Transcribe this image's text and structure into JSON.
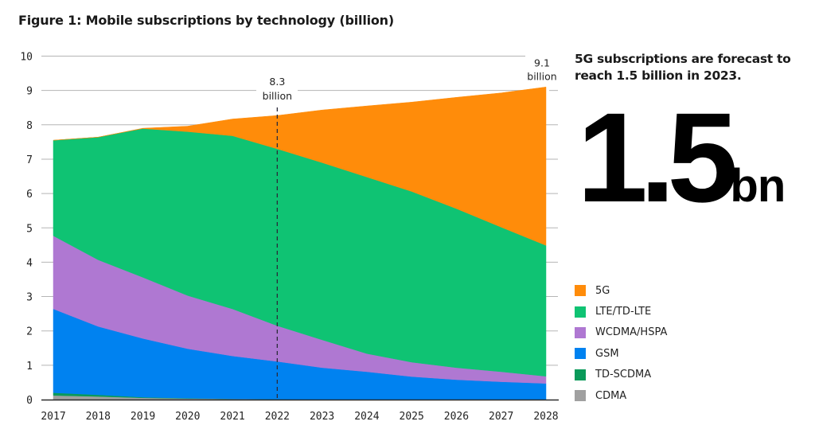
{
  "chart_data": {
    "type": "area",
    "stacked": true,
    "title": "Figure 1: Mobile subscriptions by technology (billion)",
    "xlabel": "",
    "ylabel": "",
    "ylim": [
      0,
      10
    ],
    "yticks": [
      "0",
      "1",
      "2",
      "3",
      "4",
      "5",
      "6",
      "7",
      "8",
      "9",
      "10"
    ],
    "grid": true,
    "categories": [
      "2017",
      "2018",
      "2019",
      "2020",
      "2021",
      "2022",
      "2023",
      "2024",
      "2025",
      "2026",
      "2027",
      "2028"
    ],
    "series": [
      {
        "name": "CDMA",
        "color": "#A0A0A0",
        "values": [
          0.12,
          0.09,
          0.05,
          0.03,
          0.02,
          0.01,
          0,
          0,
          0,
          0,
          0,
          0
        ]
      },
      {
        "name": "TD-SCDMA",
        "color": "#0A9A5A",
        "values": [
          0.08,
          0.05,
          0.02,
          0.01,
          0,
          0,
          0,
          0,
          0,
          0,
          0,
          0
        ]
      },
      {
        "name": "GSM",
        "color": "#0082F0",
        "values": [
          2.44,
          1.99,
          1.71,
          1.44,
          1.25,
          1.1,
          0.93,
          0.81,
          0.67,
          0.58,
          0.52,
          0.47
        ]
      },
      {
        "name": "WCDMA/HSPA",
        "color": "#AF78D2",
        "values": [
          2.13,
          1.94,
          1.78,
          1.55,
          1.37,
          1.04,
          0.81,
          0.53,
          0.42,
          0.35,
          0.29,
          0.21
        ]
      },
      {
        "name": "LTE/TD-LTE",
        "color": "#0FC373",
        "values": [
          2.78,
          3.57,
          4.33,
          4.77,
          5.04,
          5.15,
          5.16,
          5.14,
          4.97,
          4.63,
          4.21,
          3.81
        ]
      },
      {
        "name": "5G",
        "color": "#FF8C0A",
        "values": [
          0,
          0,
          0.01,
          0.16,
          0.49,
          0.97,
          1.53,
          2.07,
          2.6,
          3.24,
          3.91,
          4.61
        ]
      }
    ],
    "annotations": [
      {
        "category": "2022",
        "line": "dashed",
        "value_text": "8.3",
        "unit_text": "billion"
      },
      {
        "category": "2028",
        "value_text": "9.1",
        "unit_text": "billion"
      }
    ],
    "legend": {
      "placement": "right",
      "order": [
        "5G",
        "LTE/TD-LTE",
        "WCDMA/HSPA",
        "GSM",
        "TD-SCDMA",
        "CDMA"
      ]
    }
  },
  "callout": {
    "headline": "5G subscriptions are forecast to reach 1.5 billion in 2023.",
    "big_number": "1.5",
    "big_unit": "bn"
  },
  "legend_items": [
    {
      "label": "5G",
      "color": "#FF8C0A"
    },
    {
      "label": "LTE/TD-LTE",
      "color": "#0FC373"
    },
    {
      "label": "WCDMA/HSPA",
      "color": "#AF78D2"
    },
    {
      "label": "GSM",
      "color": "#0082F0"
    },
    {
      "label": "TD-SCDMA",
      "color": "#0A9A5A"
    },
    {
      "label": "CDMA",
      "color": "#A0A0A0"
    }
  ]
}
